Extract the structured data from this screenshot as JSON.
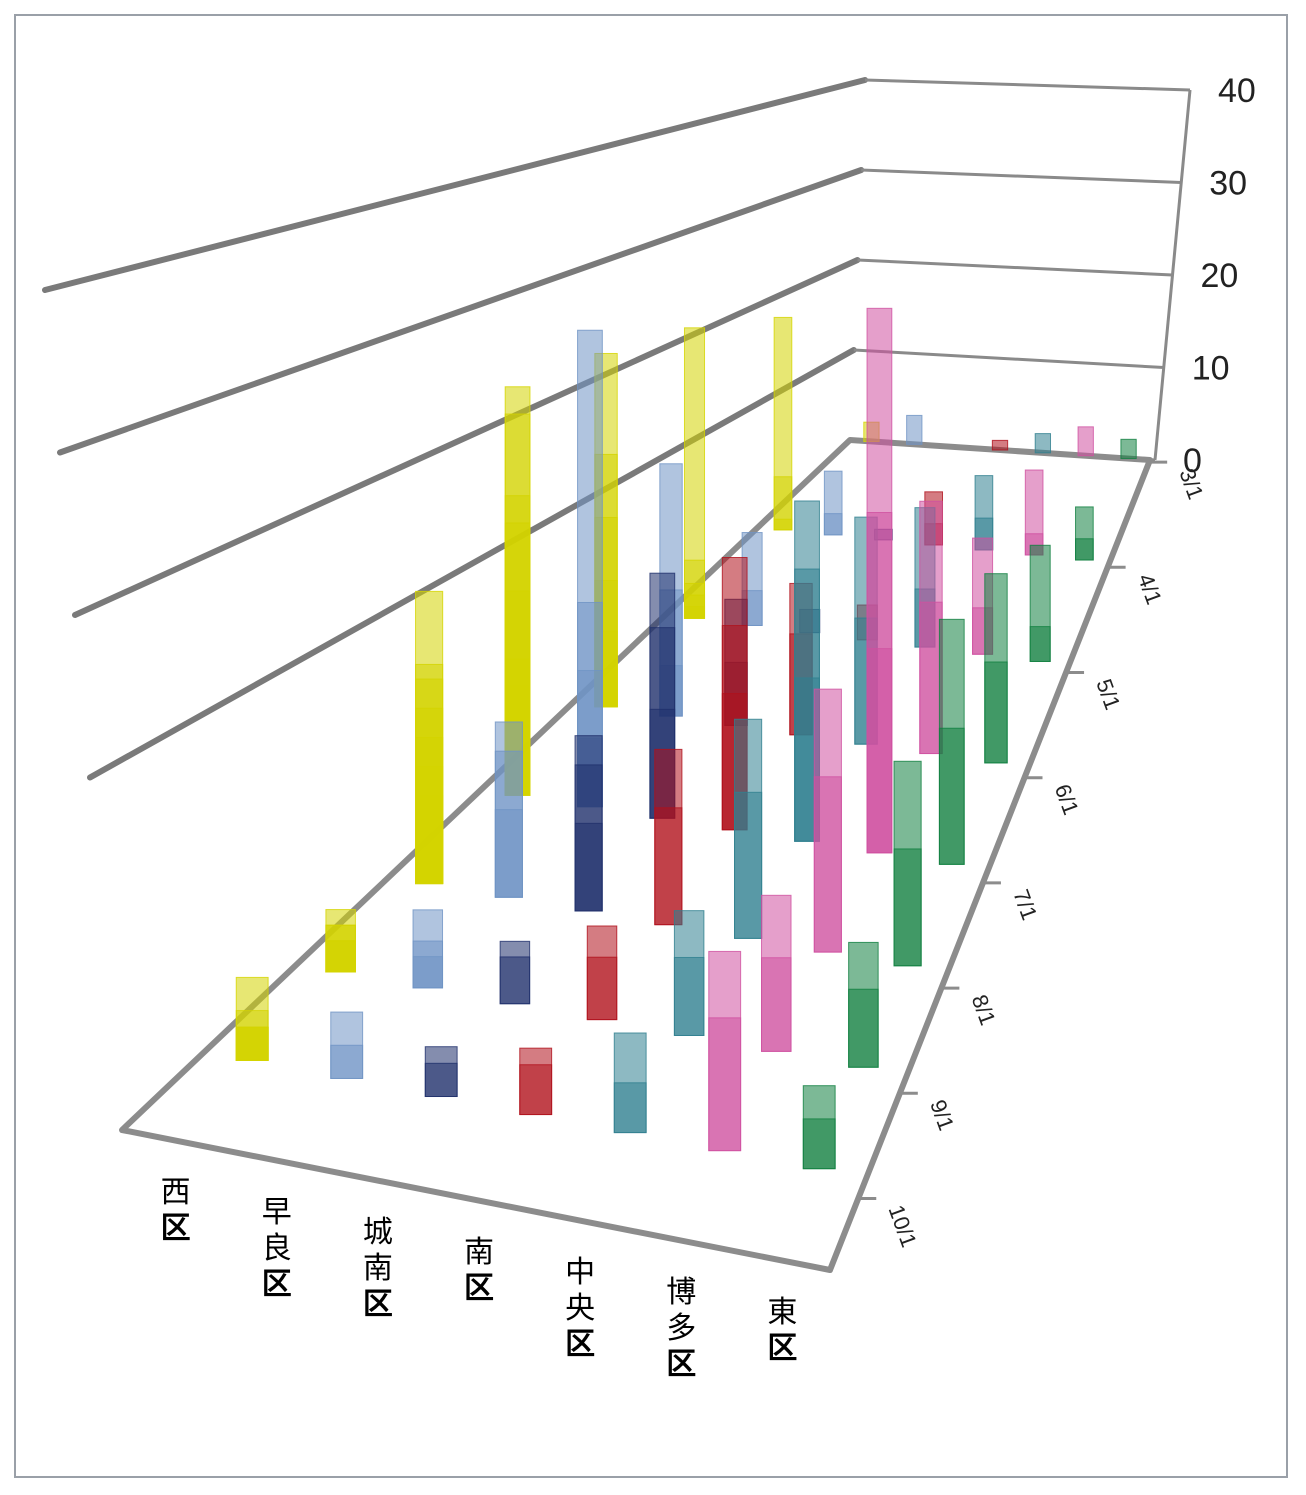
{
  "chart_data": {
    "type": "bar",
    "subtype": "3d-column",
    "title": "",
    "xlabel": "",
    "ylabel": "",
    "categories": [
      "西区",
      "早良区",
      "城南区",
      "南区",
      "中央区",
      "博多区",
      "東区"
    ],
    "date_ticks": [
      "3/1",
      "4/1",
      "5/1",
      "6/1",
      "7/1",
      "8/1",
      "9/1",
      "10/1"
    ],
    "z_ticks": [
      "0",
      "10",
      "20",
      "30",
      "40"
    ],
    "zlim": [
      0,
      40
    ],
    "series": [
      {
        "name": "西区",
        "color": "#d4d400",
        "values": [
          [
            3,
            2
          ],
          [
            4,
            1
          ],
          [
            4,
            5
          ],
          [
            4,
            20
          ],
          [
            5,
            1
          ],
          [
            5,
            3
          ],
          [
            5,
            2
          ],
          [
            5,
            5
          ],
          [
            5,
            25
          ],
          [
            6,
            1
          ],
          [
            6,
            3
          ],
          [
            6,
            6
          ],
          [
            6,
            10
          ],
          [
            6,
            15
          ],
          [
            6,
            20
          ],
          [
            6,
            28
          ],
          [
            7,
            2
          ],
          [
            7,
            3
          ],
          [
            7,
            5
          ],
          [
            7,
            8
          ],
          [
            7,
            10
          ],
          [
            7,
            15
          ],
          [
            7,
            20
          ],
          [
            7,
            22
          ],
          [
            7,
            28
          ],
          [
            7,
            30
          ],
          [
            8,
            4
          ],
          [
            8,
            6
          ],
          [
            8,
            8
          ],
          [
            8,
            10
          ],
          [
            8,
            12
          ],
          [
            8,
            14
          ],
          [
            8,
            15
          ],
          [
            8,
            20
          ],
          [
            9,
            2
          ],
          [
            9,
            3
          ],
          [
            9,
            3
          ],
          [
            9,
            2
          ],
          [
            9,
            4
          ],
          [
            10,
            3
          ],
          [
            10,
            2
          ],
          [
            10,
            2
          ],
          [
            10,
            2
          ],
          [
            10,
            5
          ]
        ]
      },
      {
        "name": "早良区",
        "color": "#6f93c4",
        "values": [
          [
            3,
            3
          ],
          [
            4,
            2
          ],
          [
            4,
            6
          ],
          [
            5,
            3
          ],
          [
            5,
            8
          ],
          [
            6,
            4
          ],
          [
            6,
            10
          ],
          [
            6,
            20
          ],
          [
            7,
            5
          ],
          [
            7,
            10
          ],
          [
            7,
            15
          ],
          [
            7,
            35
          ],
          [
            8,
            6
          ],
          [
            8,
            10
          ],
          [
            8,
            12
          ],
          [
            9,
            3
          ],
          [
            9,
            2
          ],
          [
            9,
            5
          ],
          [
            10,
            2
          ],
          [
            10,
            4
          ]
        ]
      },
      {
        "name": "城南区",
        "color": "#1f2f6b",
        "values": [
          [
            4,
            1
          ],
          [
            5,
            2
          ],
          [
            6,
            5
          ],
          [
            6,
            10
          ],
          [
            7,
            8
          ],
          [
            7,
            14
          ],
          [
            7,
            18
          ],
          [
            8,
            6
          ],
          [
            8,
            10
          ],
          [
            8,
            12
          ],
          [
            9,
            3
          ],
          [
            9,
            4
          ],
          [
            10,
            2
          ],
          [
            10,
            3
          ]
        ]
      },
      {
        "name": "南区",
        "color": "#b0101c",
        "values": [
          [
            3,
            1
          ],
          [
            4,
            2
          ],
          [
            4,
            5
          ],
          [
            5,
            3
          ],
          [
            6,
            8
          ],
          [
            6,
            12
          ],
          [
            7,
            10
          ],
          [
            7,
            15
          ],
          [
            7,
            20
          ],
          [
            8,
            8
          ],
          [
            8,
            12
          ],
          [
            9,
            4
          ],
          [
            9,
            6
          ],
          [
            10,
            3
          ],
          [
            10,
            4
          ]
        ]
      },
      {
        "name": "中央区",
        "color": "#2f7f8f",
        "values": [
          [
            3,
            2
          ],
          [
            4,
            3
          ],
          [
            4,
            7
          ],
          [
            5,
            5
          ],
          [
            5,
            12
          ],
          [
            6,
            10
          ],
          [
            6,
            18
          ],
          [
            7,
            12
          ],
          [
            7,
            20
          ],
          [
            7,
            25
          ],
          [
            8,
            10
          ],
          [
            8,
            15
          ],
          [
            9,
            5
          ],
          [
            9,
            8
          ],
          [
            10,
            3
          ],
          [
            10,
            6
          ]
        ]
      },
      {
        "name": "博多区",
        "color": "#d050a0",
        "values": [
          [
            3,
            3
          ],
          [
            4,
            2
          ],
          [
            4,
            8
          ],
          [
            5,
            4
          ],
          [
            5,
            10
          ],
          [
            6,
            12
          ],
          [
            6,
            20
          ],
          [
            7,
            15
          ],
          [
            7,
            25
          ],
          [
            7,
            40
          ],
          [
            8,
            12
          ],
          [
            8,
            18
          ],
          [
            9,
            6
          ],
          [
            9,
            10
          ],
          [
            10,
            8
          ],
          [
            10,
            12
          ]
        ]
      },
      {
        "name": "東区",
        "color": "#108040",
        "values": [
          [
            3,
            2
          ],
          [
            4,
            2
          ],
          [
            4,
            5
          ],
          [
            5,
            3
          ],
          [
            5,
            10
          ],
          [
            6,
            8
          ],
          [
            6,
            15
          ],
          [
            7,
            10
          ],
          [
            7,
            18
          ],
          [
            8,
            8
          ],
          [
            8,
            14
          ],
          [
            9,
            5
          ],
          [
            9,
            8
          ],
          [
            10,
            3
          ],
          [
            10,
            5
          ]
        ]
      }
    ]
  }
}
